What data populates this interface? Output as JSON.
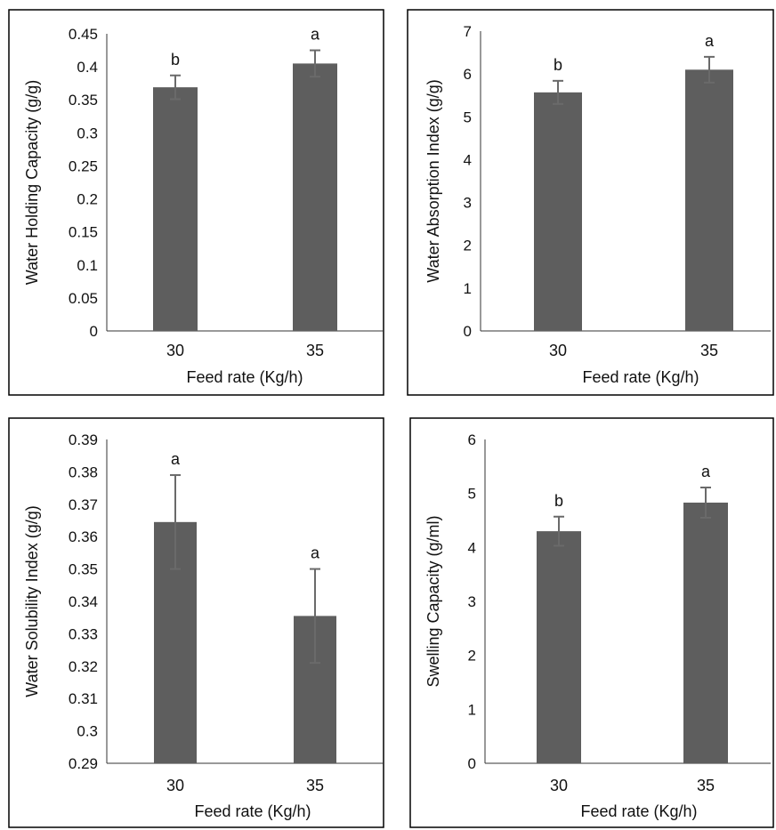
{
  "chart_data": [
    {
      "type": "bar",
      "categories": [
        "30",
        "35"
      ],
      "values": [
        0.369,
        0.405
      ],
      "errors": [
        0.018,
        0.02
      ],
      "letters": [
        "b",
        "a"
      ],
      "title": "",
      "xlabel": "Feed rate (Kg/h)",
      "ylabel": "Water Holding Capacity (g/g)",
      "ylim": [
        0,
        0.45
      ],
      "yticks": [
        "0",
        "0.05",
        "0.1",
        "0.15",
        "0.2",
        "0.25",
        "0.3",
        "0.35",
        "0.4",
        "0.45"
      ],
      "grid": false,
      "bar_color": "#5e5e5e"
    },
    {
      "type": "bar",
      "categories": [
        "30",
        "35"
      ],
      "values": [
        5.57,
        6.1
      ],
      "errors": [
        0.27,
        0.3
      ],
      "letters": [
        "b",
        "a"
      ],
      "title": "",
      "xlabel": "Feed rate (Kg/h)",
      "ylabel": "Water Absorption Index (g/g)",
      "ylim": [
        0,
        7
      ],
      "yticks": [
        "0",
        "1",
        "2",
        "3",
        "4",
        "5",
        "6",
        "7"
      ],
      "grid": false,
      "bar_color": "#5e5e5e"
    },
    {
      "type": "bar",
      "categories": [
        "30",
        "35"
      ],
      "values": [
        0.3645,
        0.3355
      ],
      "errors": [
        0.0145,
        0.0145
      ],
      "letters": [
        "a",
        "a"
      ],
      "title": "",
      "xlabel": "Feed rate (Kg/h)",
      "ylabel": "Water Solubility Index (g/g)",
      "ylim": [
        0.29,
        0.39
      ],
      "yticks": [
        "0.29",
        "0.3",
        "0.31",
        "0.32",
        "0.33",
        "0.34",
        "0.35",
        "0.36",
        "0.37",
        "0.38",
        "0.39"
      ],
      "grid": false,
      "bar_color": "#5e5e5e"
    },
    {
      "type": "bar",
      "categories": [
        "30",
        "35"
      ],
      "values": [
        4.3,
        4.83
      ],
      "errors": [
        0.27,
        0.28
      ],
      "letters": [
        "b",
        "a"
      ],
      "title": "",
      "xlabel": "Feed rate (Kg/h)",
      "ylabel": "Swelling Capacity (g/ml)",
      "ylim": [
        0,
        6
      ],
      "yticks": [
        "0",
        "1",
        "2",
        "3",
        "4",
        "5",
        "6"
      ],
      "grid": false,
      "bar_color": "#5e5e5e"
    }
  ]
}
